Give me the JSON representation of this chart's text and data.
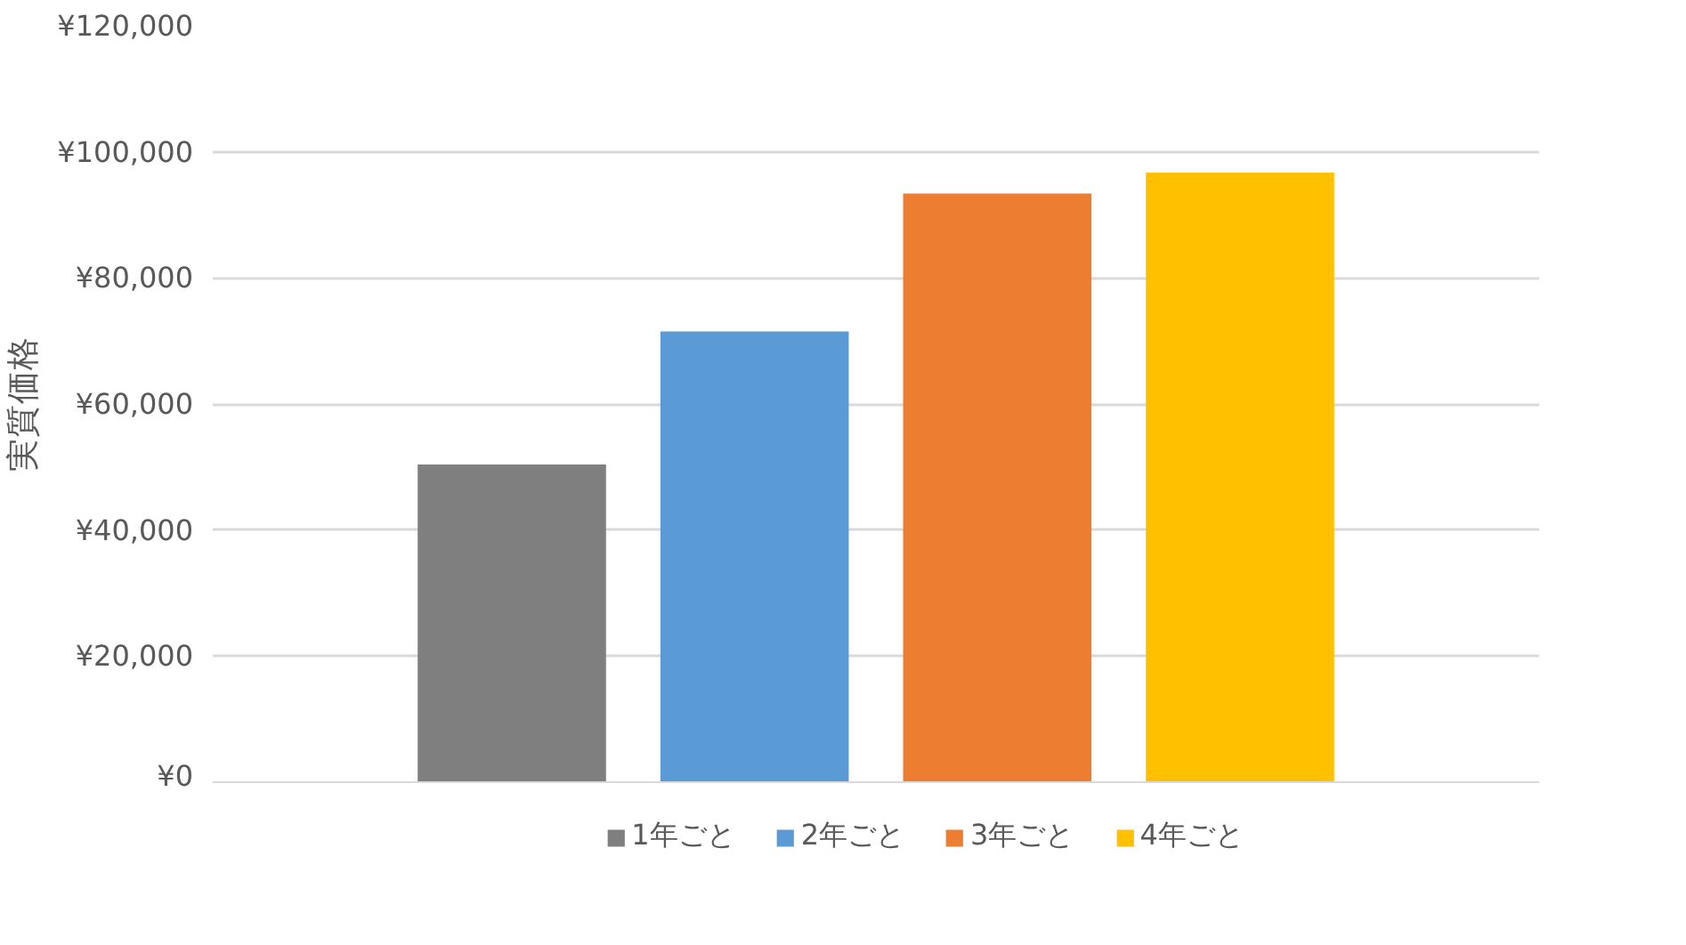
{
  "chart_data": {
    "type": "bar",
    "ylabel": "実質価格",
    "categories": [
      null
    ],
    "series": [
      {
        "name": "1年ごと",
        "color": "#7f7f7f",
        "values": [
          50400
        ]
      },
      {
        "name": "2年ごと",
        "color": "#5b9bd5",
        "values": [
          71500
        ]
      },
      {
        "name": "3年ごと",
        "color": "#ed7d31",
        "values": [
          93400
        ]
      },
      {
        "name": "4年ごと",
        "color": "#ffc000",
        "values": [
          96700
        ]
      }
    ],
    "ylim": [
      0,
      120000
    ],
    "yticks": [
      {
        "value": 0,
        "label": "¥0"
      },
      {
        "value": 20000,
        "label": "¥20,000"
      },
      {
        "value": 40000,
        "label": "¥40,000"
      },
      {
        "value": 60000,
        "label": "¥60,000"
      },
      {
        "value": 80000,
        "label": "¥80,000"
      },
      {
        "value": 100000,
        "label": "¥100,000"
      },
      {
        "value": 120000,
        "label": "¥120,000"
      }
    ],
    "grid": "y",
    "legend": "bottom"
  }
}
